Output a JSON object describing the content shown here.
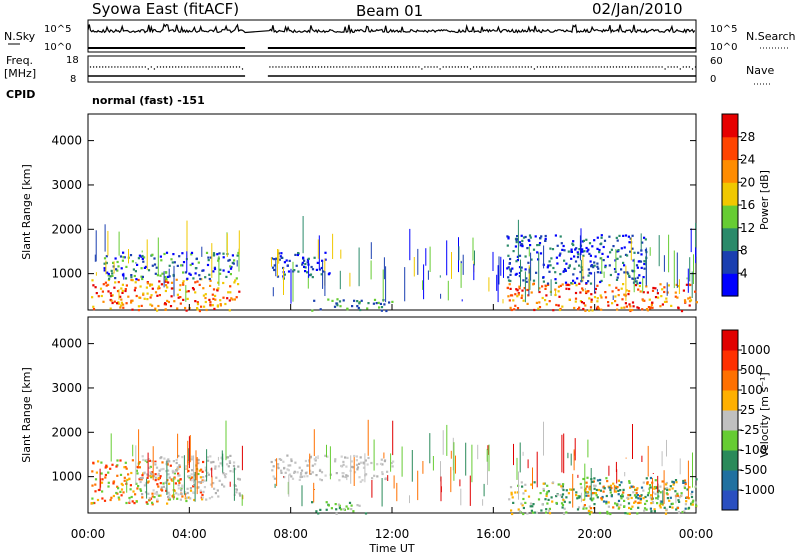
{
  "header": {
    "station": "Syowa East (fitACF)",
    "beam": "Beam 01",
    "date": "02/Jan/2010"
  },
  "status_panels": {
    "nsky_label": "N.Sky",
    "nsky_ticks": [
      "10^5",
      "10^0"
    ],
    "nsearch_label": "N.Search",
    "nsearch_ticks": [
      "10^5",
      "10^0"
    ],
    "freq_label": "Freq.",
    "freq_unit": "[MHz]",
    "freq_ticks": [
      "18",
      "8"
    ],
    "nave_label": "Nave",
    "nave_ticks": [
      "60",
      "0"
    ],
    "cpid_label": "CPID",
    "cpid_value": "normal (fast) -151"
  },
  "chart_data": [
    {
      "type": "heatmap",
      "name": "power-panel",
      "ylabel": "Slant Range [km]",
      "y_ticks": [
        "4000",
        "3000",
        "2000",
        "1000"
      ],
      "y_tick_values": [
        4000,
        3000,
        2000,
        1000
      ],
      "ylim": [
        180,
        4600
      ],
      "xlim_hours": [
        0,
        24
      ],
      "colorbar": {
        "label": "Power [dB]",
        "ticks": [
          "28",
          "24",
          "20",
          "16",
          "12",
          "8",
          "4"
        ],
        "colors": [
          "#0000ff",
          "#1a3fb0",
          "#2a8a6a",
          "#66cc33",
          "#f0c800",
          "#ff8c00",
          "#ff4400",
          "#e60000"
        ]
      },
      "data_gap_hours": [
        6.2,
        7.1
      ],
      "echo_regions": [
        {
          "t_start": 0.1,
          "t_end": 6.0,
          "r_min": 180,
          "r_max": 900,
          "dominant": "orange-red"
        },
        {
          "t_start": 0.5,
          "t_end": 6.0,
          "r_min": 900,
          "r_max": 1500,
          "dominant": "blue-green"
        },
        {
          "t_start": 7.2,
          "t_end": 9.5,
          "r_min": 900,
          "r_max": 1500,
          "dominant": "blue"
        },
        {
          "t_start": 8.8,
          "t_end": 12.0,
          "r_min": 180,
          "r_max": 450,
          "dominant": "green"
        },
        {
          "t_start": 16.5,
          "t_end": 24.0,
          "r_min": 180,
          "r_max": 800,
          "dominant": "orange-red"
        },
        {
          "t_start": 16.5,
          "t_end": 22.0,
          "r_min": 800,
          "r_max": 1900,
          "dominant": "blue"
        }
      ]
    },
    {
      "type": "heatmap",
      "name": "velocity-panel",
      "ylabel": "Slant Range [km]",
      "y_ticks": [
        "4000",
        "3000",
        "2000",
        "1000"
      ],
      "y_tick_values": [
        4000,
        3000,
        2000,
        1000
      ],
      "ylim": [
        180,
        4600
      ],
      "xlabel": "Time UT",
      "x_ticks": [
        "00:00",
        "04:00",
        "08:00",
        "12:00",
        "16:00",
        "20:00",
        "00:00"
      ],
      "x_tick_hours": [
        0,
        4,
        8,
        12,
        16,
        20,
        24
      ],
      "colorbar": {
        "label": "Velocity [m s⁻¹]",
        "ticks": [
          "1000",
          "500",
          "100",
          "25",
          "-25",
          "-100",
          "-500",
          "-1000"
        ],
        "colors": [
          "#2a4fc0",
          "#2070a0",
          "#2a8a5a",
          "#66cc33",
          "#c0c0c0",
          "#ffb000",
          "#ff7000",
          "#ff3000",
          "#e00000"
        ]
      },
      "data_gap_hours": [
        6.2,
        7.1
      ],
      "echo_regions": [
        {
          "t_start": 0.1,
          "t_end": 4.5,
          "r_min": 400,
          "r_max": 1400,
          "dominant": "orange"
        },
        {
          "t_start": 2.0,
          "t_end": 6.0,
          "r_min": 500,
          "r_max": 1500,
          "dominant": "gray"
        },
        {
          "t_start": 7.2,
          "t_end": 12.0,
          "r_min": 900,
          "r_max": 1500,
          "dominant": "gray"
        },
        {
          "t_start": 8.8,
          "t_end": 11.0,
          "r_min": 180,
          "r_max": 450,
          "dominant": "green"
        },
        {
          "t_start": 16.5,
          "t_end": 24.0,
          "r_min": 180,
          "r_max": 900,
          "dominant": "gray-green"
        },
        {
          "t_start": 19.5,
          "t_end": 24.0,
          "r_min": 300,
          "r_max": 1000,
          "dominant": "green-orange"
        }
      ]
    }
  ]
}
